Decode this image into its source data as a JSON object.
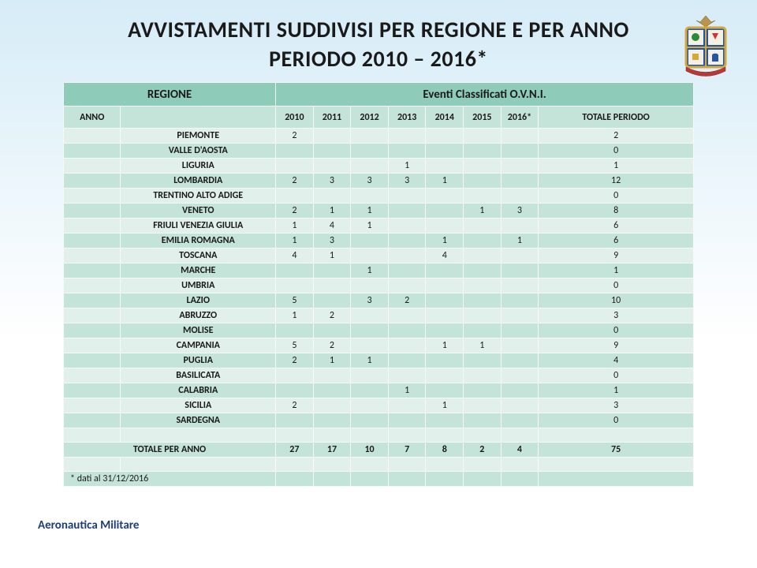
{
  "title_line1": "AVVISTAMENTI SUDDIVISI PER REGIONE E PER ANNO",
  "title_line2": "PERIODO 2010 – 2016*",
  "header": {
    "regione": "REGIONE",
    "eventi": "Eventi Classificati O.V.N.I.",
    "anno": "ANNO",
    "years": [
      "2010",
      "2011",
      "2012",
      "2013",
      "2014",
      "2015",
      "2016*"
    ],
    "totale_periodo": "TOTALE PERIODO"
  },
  "rows": [
    {
      "region": "PIEMONTE",
      "values": [
        "2",
        "",
        "",
        "",
        "",
        "",
        ""
      ],
      "total": "2"
    },
    {
      "region": "VALLE D'AOSTA",
      "values": [
        "",
        "",
        "",
        "",
        "",
        "",
        ""
      ],
      "total": "0"
    },
    {
      "region": "LIGURIA",
      "values": [
        "",
        "",
        "",
        "1",
        "",
        "",
        ""
      ],
      "total": "1"
    },
    {
      "region": "LOMBARDIA",
      "values": [
        "2",
        "3",
        "3",
        "3",
        "1",
        "",
        ""
      ],
      "total": "12"
    },
    {
      "region": "TRENTINO ALTO ADIGE",
      "values": [
        "",
        "",
        "",
        "",
        "",
        "",
        ""
      ],
      "total": "0"
    },
    {
      "region": "VENETO",
      "values": [
        "2",
        "1",
        "1",
        "",
        "",
        "1",
        "3"
      ],
      "total": "8"
    },
    {
      "region": "FRIULI VENEZIA GIULIA",
      "values": [
        "1",
        "4",
        "1",
        "",
        "",
        "",
        ""
      ],
      "total": "6"
    },
    {
      "region": "EMILIA ROMAGNA",
      "values": [
        "1",
        "3",
        "",
        "",
        "1",
        "",
        "1"
      ],
      "total": "6"
    },
    {
      "region": "TOSCANA",
      "values": [
        "4",
        "1",
        "",
        "",
        "4",
        "",
        ""
      ],
      "total": "9"
    },
    {
      "region": "MARCHE",
      "values": [
        "",
        "",
        "1",
        "",
        "",
        "",
        ""
      ],
      "total": "1"
    },
    {
      "region": "UMBRIA",
      "values": [
        "",
        "",
        "",
        "",
        "",
        "",
        ""
      ],
      "total": "0"
    },
    {
      "region": "LAZIO",
      "values": [
        "5",
        "",
        "3",
        "2",
        "",
        "",
        ""
      ],
      "total": "10"
    },
    {
      "region": "ABRUZZO",
      "values": [
        "1",
        "2",
        "",
        "",
        "",
        "",
        ""
      ],
      "total": "3"
    },
    {
      "region": "MOLISE",
      "values": [
        "",
        "",
        "",
        "",
        "",
        "",
        ""
      ],
      "total": "0"
    },
    {
      "region": "CAMPANIA",
      "values": [
        "5",
        "2",
        "",
        "",
        "1",
        "1",
        ""
      ],
      "total": "9"
    },
    {
      "region": "PUGLIA",
      "values": [
        "2",
        "1",
        "1",
        "",
        "",
        "",
        ""
      ],
      "total": "4"
    },
    {
      "region": "BASILICATA",
      "values": [
        "",
        "",
        "",
        "",
        "",
        "",
        ""
      ],
      "total": "0"
    },
    {
      "region": "CALABRIA",
      "values": [
        "",
        "",
        "",
        "1",
        "",
        "",
        ""
      ],
      "total": "1"
    },
    {
      "region": "SICILIA",
      "values": [
        "2",
        "",
        "",
        "",
        "1",
        "",
        ""
      ],
      "total": "3"
    },
    {
      "region": "SARDEGNA",
      "values": [
        "",
        "",
        "",
        "",
        "",
        "",
        ""
      ],
      "total": "0"
    }
  ],
  "totals_row": {
    "label": "TOTALE PER ANNO",
    "values": [
      "27",
      "17",
      "10",
      "7",
      "8",
      "2",
      "4"
    ],
    "grand": "75"
  },
  "note": "* dati al 31/12/2016",
  "footer": "Aeronautica Militare",
  "colors": {
    "header_main": "#8fcbb9",
    "header_sub": "#c4e3d9",
    "row_light": "#e1f0ea",
    "row_dark": "#c4e3d9",
    "border": "#f5faf8",
    "footer_text": "#1d3c7a",
    "bg_top": "#d6ecf7",
    "bg_bottom": "#ffffff"
  }
}
